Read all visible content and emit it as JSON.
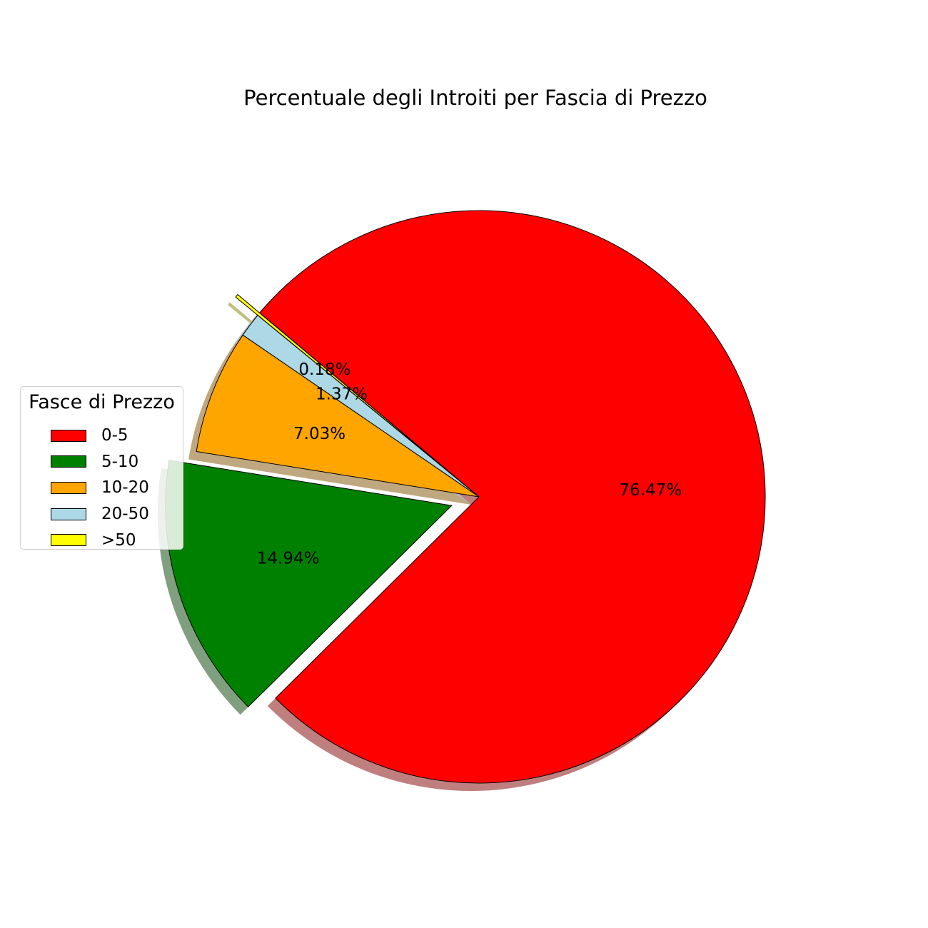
{
  "chart_data": {
    "type": "pie",
    "title": "Percentuale degli Introiti per Fascia di Prezzo",
    "categories": [
      "0-5",
      "5-10",
      "10-20",
      "20-50",
      ">50"
    ],
    "values": [
      76.47,
      14.94,
      7.03,
      1.37,
      0.18
    ],
    "labels": [
      "76.47%",
      "14.94%",
      "7.03%",
      "1.37%",
      "0.18%"
    ],
    "colors": [
      "#ff0000",
      "#008000",
      "#ffa500",
      "#add8e6",
      "#ffff00"
    ],
    "explode": [
      0,
      0.1,
      0,
      0,
      0.1
    ],
    "start_angle_deg": 140,
    "shadow": true,
    "legend": {
      "title": "Fasce di Prezzo",
      "placement": "center-left"
    }
  }
}
